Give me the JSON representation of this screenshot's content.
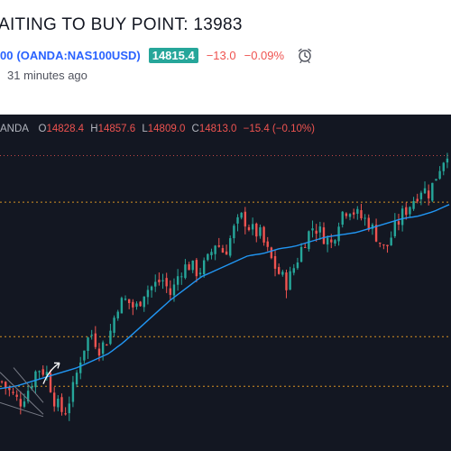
{
  "header": {
    "title": "AITING TO BUY POINT: 13983",
    "price_prefix": "00",
    "symbol": "(OANDA:NAS100USD)",
    "last_price": "14815.4",
    "change": "−13.0",
    "change_pct": "−0.09%",
    "time_ago": "31 minutes ago",
    "alarm_icon": "alarm-clock-icon"
  },
  "ohlc": {
    "source": "ANDA",
    "o_label": "O",
    "o_value": "14828.4",
    "h_label": "H",
    "h_value": "14857.6",
    "l_label": "L",
    "l_value": "14809.0",
    "c_label": "C",
    "c_value": "14813.0",
    "change": "−15.4 (−0.10%)"
  },
  "colors": {
    "up": "#26a69a",
    "down": "#ef5350",
    "ma": "#2196f3",
    "background": "#131722",
    "accent": "#2962ff"
  },
  "chart_data": {
    "type": "candlestick",
    "levels": {
      "top_dotted_red": 14760,
      "dotted_yellow_1": 14560,
      "dotted_yellow_2": 13983,
      "dotted_yellow_3": 13770
    },
    "close_path": [
      13790,
      13740,
      13700,
      13760,
      13850,
      13830,
      13700,
      13650,
      13760,
      13920,
      14000,
      13930,
      13980,
      14120,
      14140,
      14100,
      14180,
      14200,
      14230,
      14160,
      14270,
      14290,
      14260,
      14300,
      14390,
      14340,
      14440,
      14500,
      14440,
      14420,
      14330,
      14260,
      14210,
      14300,
      14400,
      14460,
      14420,
      14380,
      14510,
      14540,
      14500,
      14480,
      14420,
      14350,
      14440,
      14510,
      14560,
      14620,
      14600,
      14700,
      14780
    ],
    "ma_path": [
      13760,
      13770,
      13790,
      13810,
      13830,
      13850,
      13880,
      13910,
      13960,
      14020,
      14080,
      14140,
      14190,
      14240,
      14270,
      14300,
      14330,
      14340,
      14360,
      14370,
      14390,
      14410,
      14420,
      14430,
      14450,
      14470,
      14490,
      14500,
      14520,
      14550
    ]
  }
}
